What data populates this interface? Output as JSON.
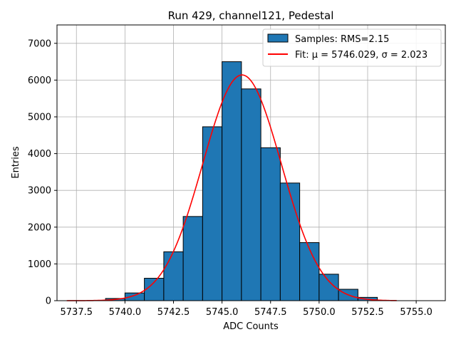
{
  "chart_data": {
    "type": "bar",
    "title": "Run 429, channel121, Pedestal",
    "xlabel": "ADC Counts",
    "ylabel": "Entries",
    "xlim": [
      5736.5,
      5756.5
    ],
    "ylim": [
      0,
      7500
    ],
    "xticks": [
      5737.5,
      5740.0,
      5742.5,
      5745.0,
      5747.5,
      5750.0,
      5752.5,
      5755.0
    ],
    "xtick_labels": [
      "5737.5",
      "5740.0",
      "5742.5",
      "5745.0",
      "5747.5",
      "5750.0",
      "5752.5",
      "5755.0"
    ],
    "yticks": [
      0,
      1000,
      2000,
      3000,
      4000,
      5000,
      6000,
      7000
    ],
    "ytick_labels": [
      "0",
      "1000",
      "2000",
      "3000",
      "4000",
      "5000",
      "6000",
      "7000"
    ],
    "grid": true,
    "legend_position": "top-right",
    "bin_width": 1,
    "series": [
      {
        "name": "Samples: RMS=2.15",
        "kind": "histogram",
        "color": "#1f77b4",
        "edge_color": "#000000",
        "bin_left_edges": [
          5739,
          5740,
          5741,
          5742,
          5743,
          5744,
          5745,
          5746,
          5747,
          5748,
          5749,
          5750,
          5751,
          5752
        ],
        "values": [
          60,
          210,
          610,
          1330,
          2290,
          4730,
          6500,
          5760,
          4160,
          3200,
          1580,
          720,
          310,
          90
        ]
      },
      {
        "name": "Fit: μ = 5746.029, σ = 2.023",
        "kind": "gaussian-fit",
        "color": "#ff0000",
        "mu": 5746.029,
        "sigma": 2.023,
        "amplitude": 6140,
        "x_range": [
          5737.0,
          5754.0
        ]
      }
    ]
  }
}
